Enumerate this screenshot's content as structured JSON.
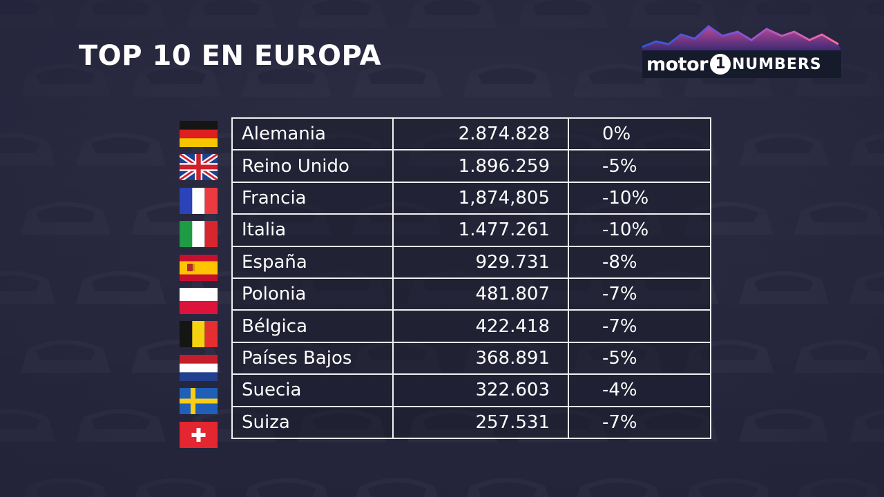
{
  "title": "TOP 10 EN EUROPA",
  "brand": {
    "word": "motor",
    "mark": "1",
    "suffix": "NUMBERS"
  },
  "colors": {
    "background": "#2a2a3c",
    "text": "#ffffff",
    "table_border": "#f2f2f2",
    "logo_ribbon_start": "#2f58d6",
    "logo_ribbon_end": "#ff6a9a"
  },
  "chart_data": {
    "type": "table",
    "title": "TOP 10 EN EUROPA",
    "columns": [
      "",
      "",
      ""
    ],
    "rows": [
      {
        "flag": "germany-flag-icon",
        "country": "Alemania",
        "units": "2.874.828",
        "change": "0%"
      },
      {
        "flag": "united-kingdom-flag-icon",
        "country": "Reino Unido",
        "units": "1.896.259",
        "change": "-5%"
      },
      {
        "flag": "france-flag-icon",
        "country": "Francia",
        "units": "1,874,805",
        "change": "-10%"
      },
      {
        "flag": "italy-flag-icon",
        "country": "Italia",
        "units": "1.477.261",
        "change": "-10%"
      },
      {
        "flag": "spain-flag-icon",
        "country": "España",
        "units": "929.731",
        "change": "-8%"
      },
      {
        "flag": "poland-flag-icon",
        "country": "Polonia",
        "units": "481.807",
        "change": "-7%"
      },
      {
        "flag": "belgium-flag-icon",
        "country": "Bélgica",
        "units": "422.418",
        "change": "-7%"
      },
      {
        "flag": "netherlands-flag-icon",
        "country": "Países Bajos",
        "units": "368.891",
        "change": "-5%"
      },
      {
        "flag": "sweden-flag-icon",
        "country": "Suecia",
        "units": "322.603",
        "change": "-4%"
      },
      {
        "flag": "switzerland-flag-icon",
        "country": "Suiza",
        "units": "257.531",
        "change": "-7%"
      }
    ]
  }
}
